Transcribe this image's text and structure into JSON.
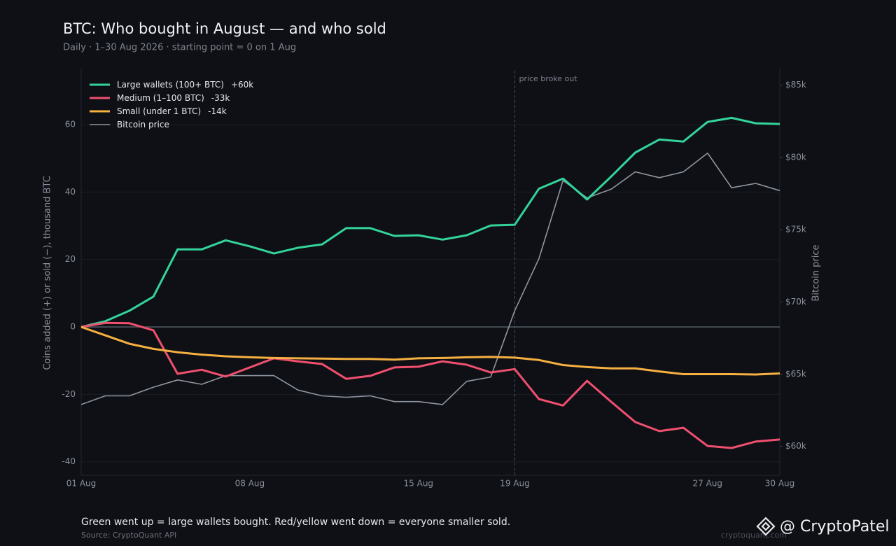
{
  "chart_data": {
    "type": "line",
    "title": "BTC: Who bought in August — and who sold",
    "subtitle": "Daily  ·  1–30 Aug 2026  ·  starting point = 0 on 1 Aug",
    "y_label": "Coins added  (+)  or sold  (−),  thousand BTC",
    "y2_label": "Bitcoin price",
    "categories": [
      "01 Aug",
      null,
      null,
      null,
      null,
      null,
      null,
      "08 Aug",
      null,
      null,
      null,
      null,
      null,
      null,
      "15 Aug",
      null,
      null,
      null,
      "19 Aug",
      null,
      null,
      null,
      null,
      null,
      null,
      null,
      "27 Aug",
      null,
      null,
      "30 Aug"
    ],
    "ylim": [
      -44,
      76
    ],
    "yticks": [
      -40,
      -20,
      0,
      20,
      40,
      60
    ],
    "y2lim": [
      58000,
      86000
    ],
    "y2ticks": [
      {
        "value": 60000,
        "label": "$60k"
      },
      {
        "value": 65000,
        "label": "$65k"
      },
      {
        "value": 70000,
        "label": "$70k"
      },
      {
        "value": 75000,
        "label": "$75k"
      },
      {
        "value": 80000,
        "label": "$80k"
      },
      {
        "value": 85000,
        "label": "$85k"
      }
    ],
    "grid": true,
    "legend": "upper left",
    "annotation": {
      "text": "price broke out",
      "x": "19 Aug"
    },
    "series": [
      {
        "name": "Large wallets (100+ BTC)",
        "change_label": "+60k",
        "color": "#34d399",
        "values": [
          0,
          1.7,
          4.8,
          9,
          23,
          23,
          25.7,
          23.9,
          21.8,
          23.5,
          24.5,
          29.3,
          29.3,
          27,
          27.2,
          25.9,
          27.2,
          30.1,
          30.3,
          41,
          44,
          37.8,
          44.6,
          51.7,
          55.6,
          55,
          60.8,
          62,
          60.4,
          60.2
        ]
      },
      {
        "name": "Medium (1–100 BTC)",
        "change_label": "-33k",
        "color": "#f0506e",
        "values": [
          0,
          1.2,
          1.1,
          -1,
          -13.9,
          -12.7,
          -14.7,
          -12,
          -9.3,
          -10.2,
          -11,
          -15.4,
          -14.5,
          -12,
          -11.8,
          -10.2,
          -11.2,
          -13.5,
          -12.5,
          -21.4,
          -23.3,
          -16,
          -22.2,
          -28.2,
          -30.9,
          -29.9,
          -35.3,
          -35.9,
          -34,
          -33.4
        ]
      },
      {
        "name": "Small (under 1 BTC)",
        "change_label": "-14k",
        "color": "#f5b041",
        "values": [
          0,
          -2.5,
          -5,
          -6.5,
          -7.5,
          -8.2,
          -8.7,
          -9,
          -9.2,
          -9.3,
          -9.4,
          -9.5,
          -9.5,
          -9.7,
          -9.3,
          -9.2,
          -9,
          -8.9,
          -9.1,
          -9.8,
          -11.3,
          -11.9,
          -12.3,
          -12.3,
          -13.2,
          -14,
          -14,
          -14,
          -14.1,
          -13.8
        ]
      },
      {
        "name": "Bitcoin price",
        "color": "#8f959f",
        "axis": "y2",
        "values": [
          62900,
          63500,
          63500,
          64100,
          64600,
          64300,
          64900,
          64900,
          64900,
          63900,
          63500,
          63400,
          63500,
          63100,
          63100,
          62900,
          64500,
          64800,
          69400,
          73000,
          78400,
          77200,
          77800,
          79000,
          78600,
          79000,
          80300,
          77900,
          78200,
          77700
        ]
      }
    ]
  },
  "footer": {
    "caption": "Green went up = large wallets bought. Red/yellow went down = everyone smaller sold.",
    "source": "Source: CryptoQuant API",
    "watermark": "cryptoquant.com",
    "handle": "@ CryptoPatel"
  }
}
